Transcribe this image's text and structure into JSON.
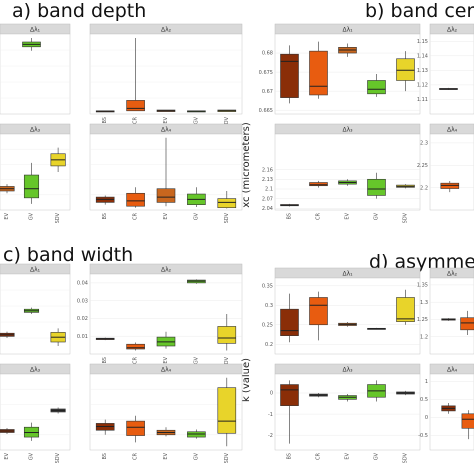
{
  "sections": [
    {
      "title": "a) band depth"
    },
    {
      "title": "b) band centre"
    },
    {
      "title": "c) band width"
    },
    {
      "title": "d) asymmetry"
    }
  ],
  "y_axis_labels": [
    "xc (micrometers)",
    "k (value)"
  ],
  "chart_data": [
    {
      "type": "box",
      "section": "a",
      "panel_label": "Δλ₁",
      "categories": [],
      "ylim": [
        0,
        1
      ],
      "y_ticks": [],
      "boxes": [
        {
          "q1": 0.84,
          "median": 0.87,
          "q3": 0.9,
          "lo": 0.79,
          "hi": 0.95,
          "color": "#66c62a"
        }
      ]
    },
    {
      "type": "box",
      "section": "a",
      "panel_label": "Δλ₂",
      "categories": [
        "BS",
        "CR",
        "EV",
        "GV",
        "SDV"
      ],
      "ylim": [
        0,
        1
      ],
      "y_ticks": [],
      "boxes": [
        {
          "q1": 0.03,
          "median": 0.035,
          "q3": 0.04,
          "lo": 0.03,
          "hi": 0.04,
          "color": "#8a2e08"
        },
        {
          "q1": 0.04,
          "median": 0.07,
          "q3": 0.17,
          "lo": 0.04,
          "hi": 0.95,
          "color": "#e85c10"
        },
        {
          "q1": 0.03,
          "median": 0.04,
          "q3": 0.05,
          "lo": 0.03,
          "hi": 0.05,
          "color": "#c8661e"
        },
        {
          "q1": 0.03,
          "median": 0.035,
          "q3": 0.04,
          "lo": 0.03,
          "hi": 0.04,
          "color": "#66c62a"
        },
        {
          "q1": 0.03,
          "median": 0.04,
          "q3": 0.05,
          "lo": 0.03,
          "hi": 0.05,
          "color": "#e8d42a"
        }
      ]
    },
    {
      "type": "box",
      "section": "a",
      "panel_label": "Δλ₃",
      "categories": [
        "EV",
        "GV",
        "SDV"
      ],
      "ylim": [
        0,
        1
      ],
      "y_ticks": [],
      "boxes": [
        {
          "q1": 0.25,
          "median": 0.28,
          "q3": 0.31,
          "lo": 0.22,
          "hi": 0.34,
          "color": "#c8661e"
        },
        {
          "q1": 0.16,
          "median": 0.28,
          "q3": 0.46,
          "lo": 0.08,
          "hi": 0.62,
          "color": "#66c62a"
        },
        {
          "q1": 0.58,
          "median": 0.66,
          "q3": 0.74,
          "lo": 0.5,
          "hi": 0.82,
          "color": "#e8d42a"
        }
      ]
    },
    {
      "type": "box",
      "section": "a",
      "panel_label": "Δλ₄",
      "categories": [
        "BS",
        "CR",
        "EV",
        "GV",
        "SDV"
      ],
      "ylim": [
        0,
        1
      ],
      "y_ticks": [],
      "boxes": [
        {
          "q1": 0.1,
          "median": 0.14,
          "q3": 0.17,
          "lo": 0.07,
          "hi": 0.19,
          "color": "#8a2e08"
        },
        {
          "q1": 0.05,
          "median": 0.12,
          "q3": 0.22,
          "lo": 0.03,
          "hi": 0.3,
          "color": "#e85c10"
        },
        {
          "q1": 0.1,
          "median": 0.17,
          "q3": 0.28,
          "lo": 0.05,
          "hi": 0.95,
          "color": "#c8661e"
        },
        {
          "q1": 0.07,
          "median": 0.14,
          "q3": 0.21,
          "lo": 0.04,
          "hi": 0.3,
          "color": "#66c62a"
        },
        {
          "q1": 0.03,
          "median": 0.1,
          "q3": 0.15,
          "lo": 0.02,
          "hi": 0.25,
          "color": "#e8d42a"
        }
      ]
    },
    {
      "type": "box",
      "section": "b",
      "panel_label": "Δλ₁",
      "categories": [],
      "ylim": [
        0.664,
        0.685
      ],
      "y_ticks": [
        0.665,
        0.67,
        0.675,
        0.68
      ],
      "boxes": [
        {
          "q1": 0.6683,
          "median": 0.6778,
          "q3": 0.6797,
          "lo": 0.6668,
          "hi": 0.682,
          "color": "#8a2e08"
        },
        {
          "q1": 0.669,
          "median": 0.6713,
          "q3": 0.6805,
          "lo": 0.668,
          "hi": 0.683,
          "color": "#e85c10"
        },
        {
          "q1": 0.68,
          "median": 0.6808,
          "q3": 0.6815,
          "lo": 0.679,
          "hi": 0.6825,
          "color": "#c8661e"
        },
        {
          "q1": 0.6693,
          "median": 0.6705,
          "q3": 0.6728,
          "lo": 0.6685,
          "hi": 0.6745,
          "color": "#66c62a"
        },
        {
          "q1": 0.6728,
          "median": 0.6755,
          "q3": 0.6785,
          "lo": 0.67,
          "hi": 0.6805,
          "color": "#e8d42a"
        }
      ]
    },
    {
      "type": "box",
      "section": "b",
      "panel_label": "Δλ₂",
      "categories": [],
      "ylim": [
        1.1,
        1.155
      ],
      "y_ticks": [
        1.11,
        1.12,
        1.13,
        1.14,
        1.15
      ],
      "boxes": [
        {
          "q1": 1.1168,
          "median": 1.1172,
          "q3": 1.1176,
          "lo": 1.1165,
          "hi": 1.118,
          "color": "#8a2e08"
        }
      ]
    },
    {
      "type": "box",
      "section": "b",
      "panel_label": "Δλ₃",
      "categories": [
        "BS",
        "CR",
        "EV",
        "GV",
        "SDV"
      ],
      "ylim": [
        2.035,
        2.27
      ],
      "y_ticks": [
        2.04,
        2.07,
        2.1,
        2.13,
        2.16
      ],
      "boxes": [
        {
          "q1": 2.048,
          "median": 2.05,
          "q3": 2.052,
          "lo": 2.046,
          "hi": 2.054,
          "color": "#8a2e08"
        },
        {
          "q1": 2.11,
          "median": 2.113,
          "q3": 2.12,
          "lo": 2.104,
          "hi": 2.125,
          "color": "#e85c10"
        },
        {
          "q1": 2.115,
          "median": 2.12,
          "q3": 2.125,
          "lo": 2.11,
          "hi": 2.13,
          "color": "#66c62a"
        },
        {
          "q1": 2.08,
          "median": 2.1,
          "q3": 2.13,
          "lo": 2.07,
          "hi": 2.15,
          "color": "#66c62a"
        },
        {
          "q1": 2.105,
          "median": 2.108,
          "q3": 2.112,
          "lo": 2.102,
          "hi": 2.115,
          "color": "#e8d42a"
        }
      ]
    },
    {
      "type": "box",
      "section": "b",
      "panel_label": "Δλ₄",
      "categories": [],
      "ylim": [
        2.15,
        2.32
      ],
      "y_ticks": [
        2.2,
        2.25,
        2.3
      ],
      "boxes": [
        {
          "q1": 2.198,
          "median": 2.205,
          "q3": 2.21,
          "lo": 2.19,
          "hi": 2.215,
          "color": "#e85c10"
        }
      ]
    },
    {
      "type": "box",
      "section": "c",
      "panel_label": "Δλ₁",
      "categories": [],
      "ylim": [
        0,
        1
      ],
      "y_ticks": [],
      "boxes": [
        {
          "q1": 0.22,
          "median": 0.24,
          "q3": 0.26,
          "lo": 0.2,
          "hi": 0.28,
          "color": "#8a2e08"
        },
        {
          "q1": 0.52,
          "median": 0.54,
          "q3": 0.56,
          "lo": 0.5,
          "hi": 0.58,
          "color": "#66c62a"
        },
        {
          "q1": 0.15,
          "median": 0.21,
          "q3": 0.27,
          "lo": 0.1,
          "hi": 0.32,
          "color": "#e8d42a"
        }
      ]
    },
    {
      "type": "box",
      "section": "c",
      "panel_label": "Δλ₂",
      "categories": [
        "BS",
        "CR",
        "EV",
        "GV",
        "SDV"
      ],
      "ylim": [
        0,
        0.045
      ],
      "y_ticks": [
        0.01,
        0.02,
        0.03,
        0.04
      ],
      "boxes": [
        {
          "q1": 0.0081,
          "median": 0.0085,
          "q3": 0.0089,
          "lo": 0.0078,
          "hi": 0.0092,
          "color": "#8a2e08"
        },
        {
          "q1": 0.0028,
          "median": 0.0035,
          "q3": 0.0055,
          "lo": 0.002,
          "hi": 0.0065,
          "color": "#e85c10"
        },
        {
          "q1": 0.0045,
          "median": 0.0068,
          "q3": 0.0095,
          "lo": 0.003,
          "hi": 0.0125,
          "color": "#66c62a"
        },
        {
          "q1": 0.04,
          "median": 0.041,
          "q3": 0.0416,
          "lo": 0.0395,
          "hi": 0.042,
          "color": "#66c62a"
        },
        {
          "q1": 0.006,
          "median": 0.009,
          "q3": 0.0155,
          "lo": 0.002,
          "hi": 0.0225,
          "color": "#e8d42a"
        }
      ]
    },
    {
      "type": "box",
      "section": "c",
      "panel_label": "Δλ₃",
      "categories": [
        "EV",
        "GV",
        "SDV"
      ],
      "ylim": [
        0,
        1
      ],
      "y_ticks": [],
      "boxes": [
        {
          "q1": 0.23,
          "median": 0.25,
          "q3": 0.27,
          "lo": 0.21,
          "hi": 0.29,
          "color": "#8a2e08"
        },
        {
          "q1": 0.17,
          "median": 0.23,
          "q3": 0.3,
          "lo": 0.12,
          "hi": 0.36,
          "color": "#66c62a"
        },
        {
          "q1": 0.5,
          "median": 0.52,
          "q3": 0.54,
          "lo": 0.48,
          "hi": 0.56,
          "color": "#3a3a3a"
        }
      ]
    },
    {
      "type": "box",
      "section": "c",
      "panel_label": "Δλ₄",
      "categories": [
        "BS",
        "CR",
        "EV",
        "GV",
        "SDV"
      ],
      "ylim": [
        0,
        1
      ],
      "y_ticks": [],
      "boxes": [
        {
          "q1": 0.26,
          "median": 0.31,
          "q3": 0.35,
          "lo": 0.2,
          "hi": 0.4,
          "color": "#8a2e08"
        },
        {
          "q1": 0.19,
          "median": 0.3,
          "q3": 0.38,
          "lo": 0.1,
          "hi": 0.45,
          "color": "#e85c10"
        },
        {
          "q1": 0.2,
          "median": 0.23,
          "q3": 0.26,
          "lo": 0.18,
          "hi": 0.3,
          "color": "#c8661e"
        },
        {
          "q1": 0.17,
          "median": 0.21,
          "q3": 0.24,
          "lo": 0.15,
          "hi": 0.27,
          "color": "#66c62a"
        },
        {
          "q1": 0.22,
          "median": 0.38,
          "q3": 0.82,
          "lo": 0.05,
          "hi": 0.95,
          "color": "#e8d42a"
        }
      ]
    },
    {
      "type": "box",
      "section": "d",
      "panel_label": "Δλ₁",
      "categories": [],
      "ylim": [
        0.175,
        0.37
      ],
      "y_ticks": [
        0.2,
        0.25,
        0.3,
        0.35
      ],
      "boxes": [
        {
          "q1": 0.222,
          "median": 0.235,
          "q3": 0.29,
          "lo": 0.205,
          "hi": 0.33,
          "color": "#8a2e08"
        },
        {
          "q1": 0.25,
          "median": 0.3,
          "q3": 0.32,
          "lo": 0.21,
          "hi": 0.335,
          "color": "#e85c10"
        },
        {
          "q1": 0.248,
          "median": 0.251,
          "q3": 0.254,
          "lo": 0.245,
          "hi": 0.257,
          "color": "#c8661e"
        },
        {
          "q1": 0.239,
          "median": 0.24,
          "q3": 0.241,
          "lo": 0.238,
          "hi": 0.242,
          "color": "#3a3a3a"
        },
        {
          "q1": 0.258,
          "median": 0.265,
          "q3": 0.32,
          "lo": 0.25,
          "hi": 0.34,
          "color": "#e8d42a"
        }
      ]
    },
    {
      "type": "box",
      "section": "d",
      "panel_label": "Δλ₂",
      "categories": [],
      "ylim": [
        1.15,
        1.37
      ],
      "y_ticks": [
        1.2,
        1.25,
        1.3,
        1.35
      ],
      "boxes": [
        {
          "q1": 1.248,
          "median": 1.25,
          "q3": 1.252,
          "lo": 1.246,
          "hi": 1.254,
          "color": "#8a2e08"
        },
        {
          "q1": 1.22,
          "median": 1.24,
          "q3": 1.255,
          "lo": 1.205,
          "hi": 1.275,
          "color": "#e85c10"
        }
      ]
    },
    {
      "type": "box",
      "section": "d",
      "panel_label": "Δλ₃",
      "categories": [
        "BS",
        "CR",
        "EV",
        "GV",
        "SDV"
      ],
      "ylim": [
        -2.7,
        0.9
      ],
      "y_ticks": [
        -2,
        -1,
        0
      ],
      "boxes": [
        {
          "q1": -0.6,
          "median": 0.15,
          "q3": 0.4,
          "lo": -2.4,
          "hi": 0.6,
          "color": "#8a2e08"
        },
        {
          "q1": -0.15,
          "median": -0.1,
          "q3": -0.05,
          "lo": -0.2,
          "hi": 0.0,
          "color": "#3a3a3a"
        },
        {
          "q1": -0.3,
          "median": -0.2,
          "q3": -0.12,
          "lo": -0.4,
          "hi": -0.05,
          "color": "#66c62a"
        },
        {
          "q1": -0.2,
          "median": 0.1,
          "q3": 0.4,
          "lo": -0.4,
          "hi": 0.6,
          "color": "#66c62a"
        },
        {
          "q1": -0.05,
          "median": 0.0,
          "q3": 0.05,
          "lo": -0.1,
          "hi": 0.1,
          "color": "#3a3a3a"
        }
      ]
    },
    {
      "type": "box",
      "section": "d",
      "panel_label": "Δλ₄",
      "categories": [],
      "ylim": [
        -0.9,
        1.2
      ],
      "y_ticks": [
        -0.5,
        0,
        0.5,
        1
      ],
      "boxes": [
        {
          "q1": 0.18,
          "median": 0.25,
          "q3": 0.32,
          "lo": 0.1,
          "hi": 0.4,
          "color": "#8a2e08"
        },
        {
          "q1": -0.3,
          "median": -0.05,
          "q3": 0.1,
          "lo": -0.6,
          "hi": 0.2,
          "color": "#e85c10"
        }
      ]
    }
  ]
}
